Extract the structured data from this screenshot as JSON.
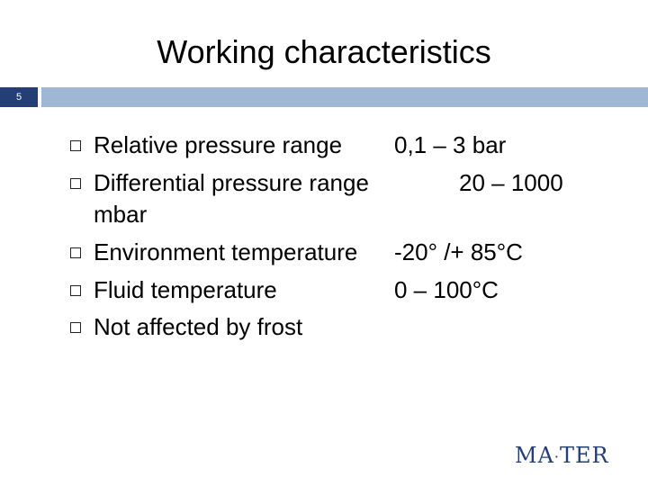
{
  "slide": {
    "title": "Working characteristics",
    "page_number": "5",
    "bullets": [
      {
        "label": "Relative pressure range",
        "value": "0,1 – 3 bar"
      },
      {
        "label": "Differential pressure range",
        "value": "20 – 1000",
        "continuation": "mbar"
      },
      {
        "label": "Environment temperature",
        "value": "-20° /+ 85°C"
      },
      {
        "label": "Fluid temperature",
        "value": "0 – 100°C"
      },
      {
        "label": "Not affected by frost",
        "value": ""
      }
    ],
    "logo": {
      "left": "MA",
      "sep": "·",
      "right": "TER"
    }
  },
  "colors": {
    "accent_dark": "#243e76",
    "accent_light": "#9fb7d5"
  }
}
